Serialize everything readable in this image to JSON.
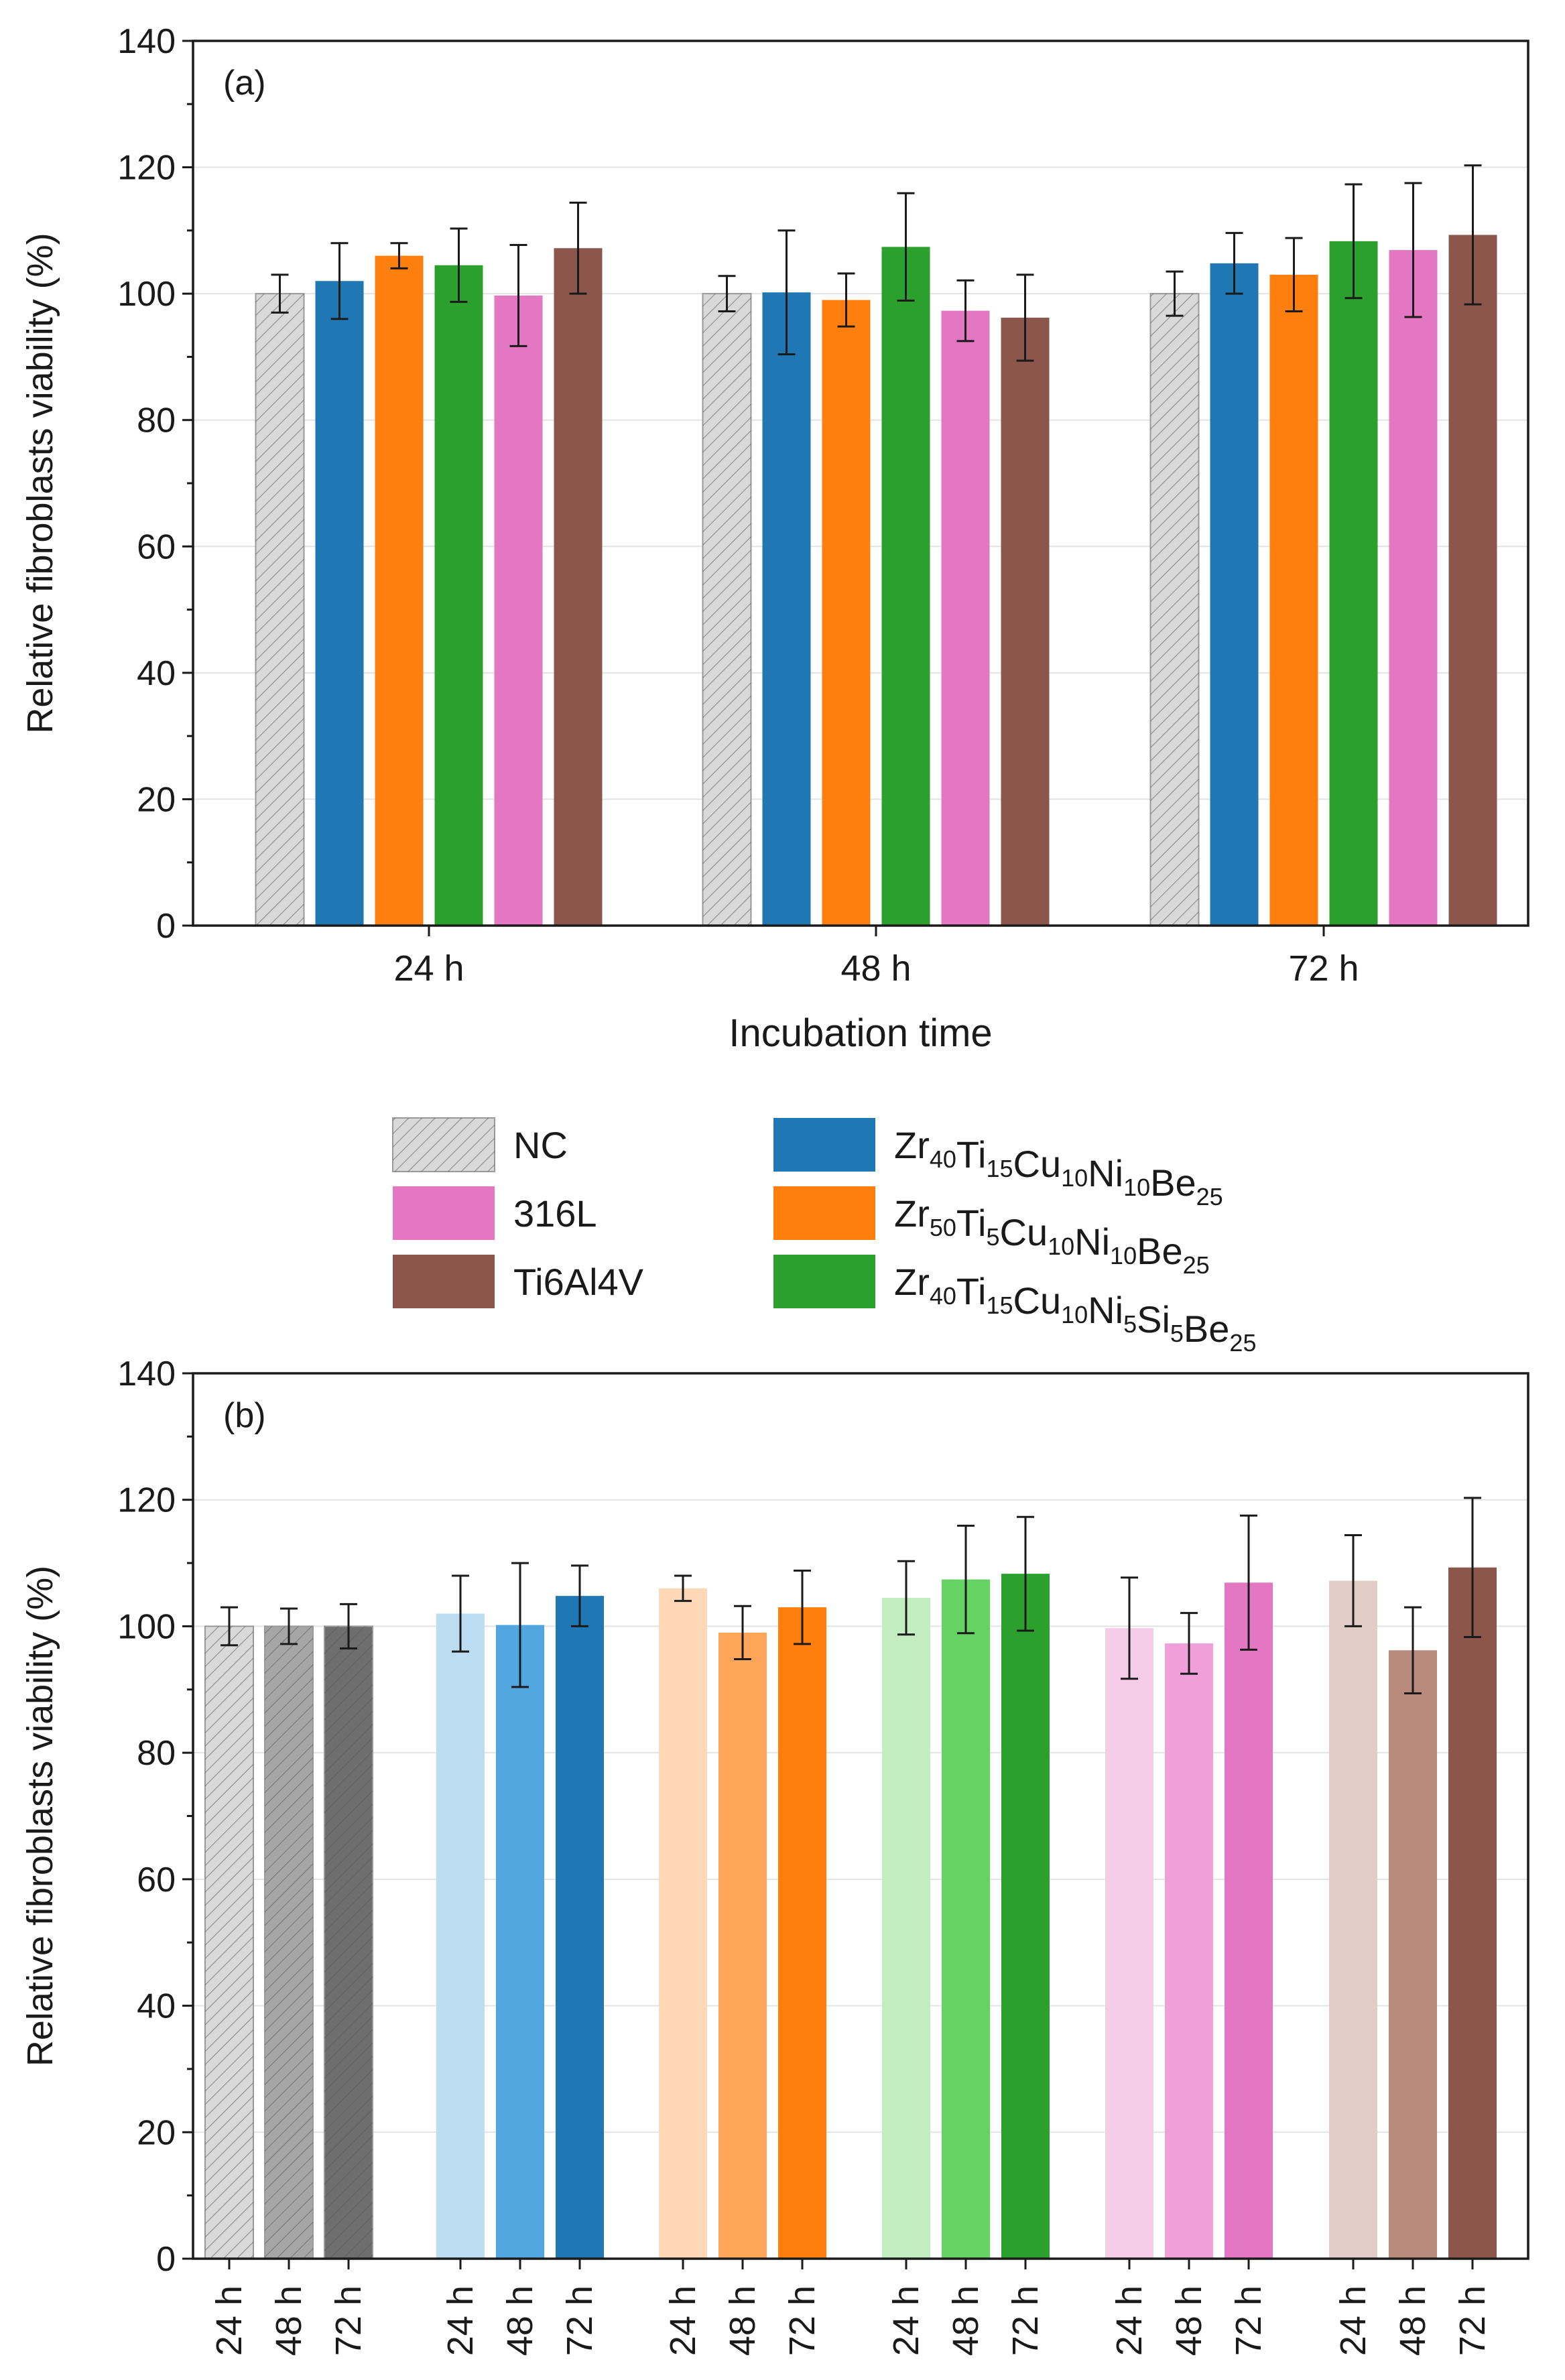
{
  "chart_data": [
    {
      "type": "bar",
      "panel_label": "(a)",
      "xlabel": "Incubation time",
      "ylabel": "Relative fibroblasts viability (%)",
      "ylim": [
        0,
        140
      ],
      "yticks": [
        0,
        20,
        40,
        60,
        80,
        100,
        120,
        140
      ],
      "grid": true,
      "categories": [
        "24 h",
        "48 h",
        "72 h"
      ],
      "series": [
        {
          "name": "NC",
          "color": "#d9d9d9",
          "hatch": true,
          "values": [
            100,
            100,
            100
          ],
          "errors": [
            3,
            2.8,
            3.5
          ]
        },
        {
          "name": "Zr40Ti15Cu10Ni10Be25",
          "color": "#1f77b4",
          "values": [
            102,
            100.2,
            104.8
          ],
          "errors": [
            6,
            9.8,
            4.8
          ]
        },
        {
          "name": "Zr50Ti5Cu10Ni10Be25",
          "color": "#ff7f0e",
          "values": [
            106,
            99,
            103
          ],
          "errors": [
            2,
            4.2,
            5.8
          ]
        },
        {
          "name": "Zr40Ti15Cu10Ni5Si5Be25",
          "color": "#2ca02c",
          "values": [
            104.5,
            107.4,
            108.3
          ],
          "errors": [
            5.8,
            8.5,
            9
          ]
        },
        {
          "name": "316L",
          "color": "#e377c2",
          "values": [
            99.7,
            97.3,
            106.9
          ],
          "errors": [
            8,
            4.8,
            10.6
          ]
        },
        {
          "name": "Ti6Al4V",
          "color": "#8c564b",
          "values": [
            107.2,
            96.2,
            109.3
          ],
          "errors": [
            7.2,
            6.8,
            11
          ]
        }
      ]
    },
    {
      "type": "bar",
      "panel_label": "(b)",
      "xlabel": "",
      "ylabel": "Relative fibroblasts viability (%)",
      "ylim": [
        0,
        140
      ],
      "yticks": [
        0,
        20,
        40,
        60,
        80,
        100,
        120,
        140
      ],
      "grid": true,
      "groups": [
        {
          "name": "NC",
          "hatch": true,
          "colors": [
            "#d9d9d9",
            "#a6a6a6",
            "#6e6e6e"
          ],
          "labels": [
            "24 h",
            "48 h",
            "72 h"
          ],
          "values": [
            100,
            100,
            100
          ],
          "errors": [
            3,
            2.8,
            3.5
          ]
        },
        {
          "name": "Zr40Ti15Cu10Ni10Be25",
          "colors": [
            "#bcdcf2",
            "#52a6e0",
            "#1f77b4"
          ],
          "labels": [
            "24 h",
            "48 h",
            "72 h"
          ],
          "values": [
            102,
            100.2,
            104.8
          ],
          "errors": [
            6,
            9.8,
            4.8
          ]
        },
        {
          "name": "Zr50Ti5Cu10Ni10Be25",
          "colors": [
            "#ffd9b7",
            "#ffa55a",
            "#ff7f0e"
          ],
          "labels": [
            "24 h",
            "48 h",
            "72 h"
          ],
          "values": [
            106,
            99,
            103
          ],
          "errors": [
            2,
            4.2,
            5.8
          ]
        },
        {
          "name": "Zr40Ti15Cu10Ni5Si5Be25",
          "colors": [
            "#c1edc1",
            "#64d364",
            "#2ca02c"
          ],
          "labels": [
            "24 h",
            "48 h",
            "72 h"
          ],
          "values": [
            104.5,
            107.4,
            108.3
          ],
          "errors": [
            5.8,
            8.5,
            9
          ]
        },
        {
          "name": "316L",
          "colors": [
            "#f6cde9",
            "#f09fd8",
            "#e377c2"
          ],
          "labels": [
            "24 h",
            "48 h",
            "72 h"
          ],
          "values": [
            99.7,
            97.3,
            106.9
          ],
          "errors": [
            8,
            4.8,
            10.6
          ]
        },
        {
          "name": "Ti6Al4V",
          "colors": [
            "#e2cdc6",
            "#b88a7c",
            "#8c564b"
          ],
          "labels": [
            "24 h",
            "48 h",
            "72 h"
          ],
          "values": [
            107.2,
            96.2,
            109.3
          ],
          "errors": [
            7.2,
            6.8,
            11
          ]
        }
      ]
    }
  ],
  "legend": {
    "placement": "between-panels",
    "entries": [
      {
        "key": "NC",
        "color": "#d9d9d9",
        "hatch": true,
        "parts": [
          [
            "NC",
            ""
          ]
        ]
      },
      {
        "key": "316L",
        "color": "#e377c2",
        "parts": [
          [
            "316L",
            ""
          ]
        ]
      },
      {
        "key": "Ti6Al4V",
        "color": "#8c564b",
        "parts": [
          [
            "Ti6Al4V",
            ""
          ]
        ]
      },
      {
        "key": "Zr40Ti15Cu10Ni10Be25",
        "color": "#1f77b4",
        "parts": [
          [
            "Zr",
            "40"
          ],
          [
            "Ti",
            "15"
          ],
          [
            "Cu",
            "10"
          ],
          [
            "Ni",
            "10"
          ],
          [
            "Be",
            "25"
          ]
        ]
      },
      {
        "key": "Zr50Ti5Cu10Ni10Be25",
        "color": "#ff7f0e",
        "parts": [
          [
            "Zr",
            "50"
          ],
          [
            "Ti",
            "5"
          ],
          [
            "Cu",
            "10"
          ],
          [
            "Ni",
            "10"
          ],
          [
            "Be",
            "25"
          ]
        ]
      },
      {
        "key": "Zr40Ti15Cu10Ni5Si5Be25",
        "color": "#2ca02c",
        "parts": [
          [
            "Zr",
            "40"
          ],
          [
            "Ti",
            "15"
          ],
          [
            "Cu",
            "10"
          ],
          [
            "Ni",
            "5"
          ],
          [
            "Si",
            "5"
          ],
          [
            "Be",
            "25"
          ]
        ]
      }
    ]
  }
}
